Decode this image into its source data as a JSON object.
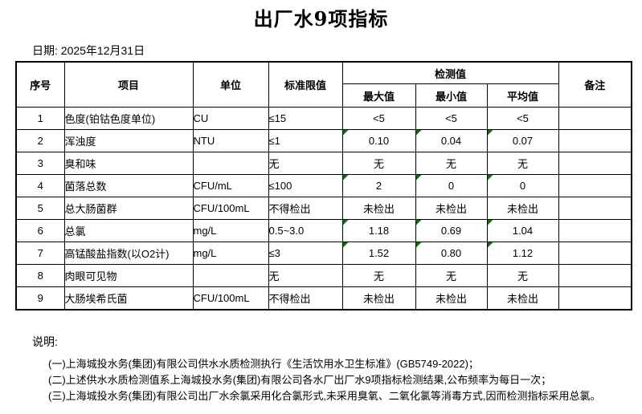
{
  "title": "出厂水9项指标",
  "date_label": "日期: 2025年12月31日",
  "colors": {
    "flag_triangle": "#007b00",
    "border": "#000000",
    "background": "#ffffff"
  },
  "table": {
    "headers": {
      "seq": "序号",
      "item": "项目",
      "unit": "单位",
      "limit": "标准限值",
      "detection": "检测值",
      "max": "最大值",
      "min": "最小值",
      "avg": "平均值",
      "remark": "备注"
    },
    "rows": [
      {
        "seq": "1",
        "item": "色度(铂钴色度单位)",
        "unit": "CU",
        "limit": "≤15",
        "max": "<5",
        "min": "<5",
        "avg": "<5",
        "remark": "",
        "flags": [
          false,
          false,
          false
        ]
      },
      {
        "seq": "2",
        "item": "浑浊度",
        "unit": "NTU",
        "limit": "≤1",
        "max": "0.10",
        "min": "0.04",
        "avg": "0.07",
        "remark": "",
        "flags": [
          true,
          true,
          true
        ]
      },
      {
        "seq": "3",
        "item": "臭和味",
        "unit": "",
        "limit": "无",
        "max": "无",
        "min": "无",
        "avg": "无",
        "remark": "",
        "flags": [
          false,
          false,
          false
        ]
      },
      {
        "seq": "4",
        "item": "菌落总数",
        "unit": "CFU/mL",
        "limit": "≤100",
        "max": "2",
        "min": "0",
        "avg": "0",
        "remark": "",
        "flags": [
          true,
          true,
          true
        ]
      },
      {
        "seq": "5",
        "item": "总大肠菌群",
        "unit": "CFU/100mL",
        "limit": "不得检出",
        "max": "未检出",
        "min": "未检出",
        "avg": "未检出",
        "remark": "",
        "flags": [
          false,
          false,
          false
        ]
      },
      {
        "seq": "6",
        "item": "总氯",
        "unit": "mg/L",
        "limit": "0.5~3.0",
        "max": "1.18",
        "min": "0.69",
        "avg": "1.04",
        "remark": "",
        "flags": [
          true,
          true,
          true
        ]
      },
      {
        "seq": "7",
        "item": "高锰酸盐指数(以O2计)",
        "unit": "mg/L",
        "limit": "≤3",
        "max": "1.52",
        "min": "0.80",
        "avg": "1.12",
        "remark": "",
        "flags": [
          true,
          true,
          true
        ]
      },
      {
        "seq": "8",
        "item": "肉眼可见物",
        "unit": "",
        "limit": "无",
        "max": "无",
        "min": "无",
        "avg": "无",
        "remark": "",
        "flags": [
          false,
          false,
          false
        ]
      },
      {
        "seq": "9",
        "item": "大肠埃希氏菌",
        "unit": "CFU/100mL",
        "limit": "不得检出",
        "max": "未检出",
        "min": "未检出",
        "avg": "未检出",
        "remark": "",
        "flags": [
          false,
          false,
          false
        ]
      }
    ]
  },
  "notes": {
    "label": "说明:",
    "items": [
      "(一)上海城投水务(集团)有限公司供水水质检测执行《生活饮用水卫生标准》(GB5749-2022)；",
      "(二)上述供水水质检测值系上海城投水务(集团)有限公司各水厂出厂水9项指标检测结果,公布频率为每日一次；",
      "(三)上海城投水务(集团)有限公司出厂水余氯采用化合氯形式,未采用臭氧、二氧化氯等消毒方式,因而检测指标采用总氯。"
    ]
  }
}
